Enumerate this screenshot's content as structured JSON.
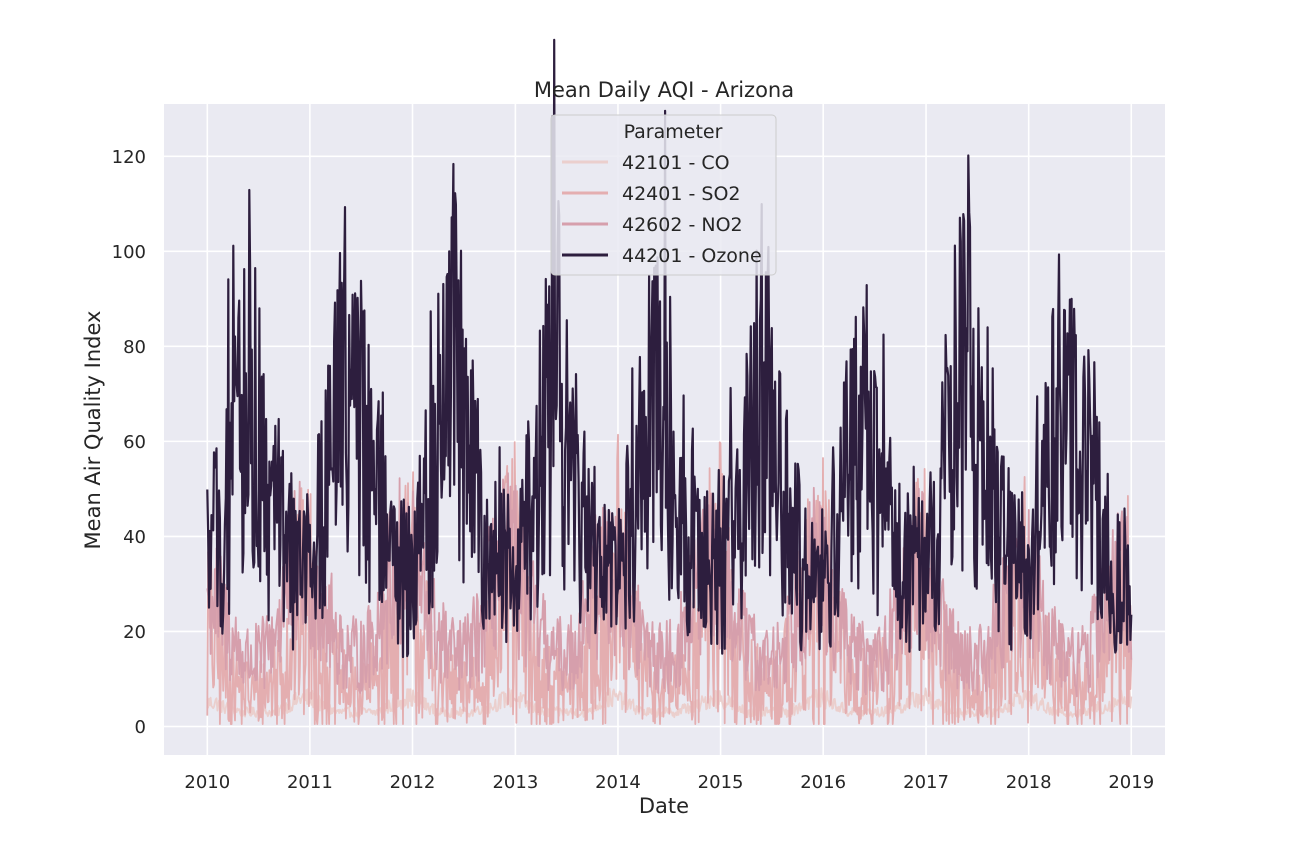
{
  "chart_data": {
    "type": "line",
    "title": "Mean Daily AQI - Arizona",
    "xlabel": "Date",
    "ylabel": "Mean Air Quality Index",
    "xlim": [
      "2009-07-31",
      "2019-05-01"
    ],
    "ylim": [
      -6,
      131
    ],
    "x_ticks": [
      "2010",
      "2011",
      "2012",
      "2013",
      "2014",
      "2015",
      "2016",
      "2017",
      "2018",
      "2019"
    ],
    "y_ticks": [
      0,
      20,
      40,
      60,
      80,
      100,
      120
    ],
    "grid": true,
    "legend": {
      "title": "Parameter",
      "placement": "top-center"
    },
    "x_start": "2010-01-01",
    "x_step": "monthly (series values are monthly representative daily means; daily noise not reproducible)",
    "series": [
      {
        "name": "42101 - CO",
        "color": "#ebcfcd",
        "values": [
          5,
          5,
          4,
          4,
          3,
          3,
          3,
          3,
          3,
          4,
          5,
          6,
          6,
          5,
          4,
          3,
          3,
          3,
          3,
          3,
          3,
          4,
          5,
          6,
          6,
          5,
          4,
          3,
          3,
          3,
          3,
          3,
          4,
          4,
          5,
          6,
          6,
          5,
          4,
          3,
          3,
          3,
          3,
          3,
          3,
          4,
          5,
          6,
          6,
          5,
          4,
          3,
          3,
          3,
          3,
          3,
          4,
          4,
          5,
          6,
          6,
          5,
          4,
          3,
          3,
          3,
          3,
          3,
          3,
          4,
          5,
          6,
          6,
          5,
          4,
          3,
          3,
          3,
          3,
          3,
          4,
          4,
          5,
          6,
          6,
          5,
          4,
          3,
          3,
          3,
          3,
          3,
          3,
          4,
          5,
          6,
          6,
          5,
          4,
          3,
          3,
          3,
          3,
          3,
          4,
          4,
          5,
          6,
          6
        ]
      },
      {
        "name": "42401 - SO2",
        "color": "#e4aeb0",
        "values": [
          22,
          16,
          12,
          9,
          8,
          7,
          7,
          8,
          10,
          14,
          20,
          24,
          26,
          18,
          13,
          10,
          8,
          7,
          7,
          8,
          11,
          15,
          21,
          25,
          28,
          19,
          14,
          10,
          8,
          7,
          8,
          9,
          12,
          16,
          22,
          27,
          29,
          20,
          14,
          10,
          8,
          8,
          8,
          9,
          12,
          17,
          23,
          27,
          30,
          21,
          15,
          11,
          9,
          8,
          8,
          10,
          13,
          18,
          24,
          28,
          30,
          21,
          15,
          11,
          9,
          8,
          8,
          10,
          13,
          17,
          23,
          27,
          28,
          20,
          14,
          10,
          8,
          8,
          8,
          10,
          12,
          17,
          22,
          26,
          27,
          19,
          14,
          10,
          8,
          7,
          8,
          9,
          12,
          16,
          21,
          25,
          26,
          18,
          13,
          10,
          8,
          7,
          7,
          9,
          12,
          16,
          20,
          24,
          26
        ]
      },
      {
        "name": "42602 - NO2",
        "color": "#d69fac",
        "values": [
          30,
          26,
          22,
          18,
          15,
          14,
          14,
          16,
          21,
          27,
          32,
          34,
          33,
          28,
          23,
          19,
          16,
          15,
          15,
          17,
          22,
          28,
          33,
          35,
          33,
          28,
          23,
          19,
          16,
          15,
          15,
          17,
          22,
          28,
          33,
          35,
          33,
          28,
          23,
          19,
          16,
          15,
          15,
          17,
          22,
          28,
          32,
          34,
          32,
          27,
          22,
          18,
          16,
          14,
          15,
          17,
          21,
          27,
          31,
          33,
          31,
          26,
          21,
          18,
          15,
          14,
          14,
          16,
          21,
          26,
          31,
          33,
          31,
          26,
          21,
          18,
          15,
          14,
          14,
          16,
          21,
          26,
          31,
          33,
          31,
          26,
          21,
          18,
          15,
          14,
          14,
          16,
          20,
          26,
          30,
          32,
          30,
          25,
          21,
          17,
          15,
          14,
          14,
          16,
          20,
          25,
          29,
          31,
          30
        ]
      },
      {
        "name": "44201 - Ozone",
        "color": "#2d1e3e",
        "values": [
          36,
          38,
          44,
          52,
          62,
          72,
          56,
          50,
          44,
          38,
          34,
          33,
          35,
          40,
          50,
          62,
          74,
          82,
          60,
          54,
          45,
          39,
          34,
          32,
          34,
          40,
          48,
          60,
          72,
          80,
          58,
          52,
          44,
          38,
          34,
          32,
          33,
          38,
          46,
          58,
          68,
          78,
          56,
          50,
          43,
          37,
          33,
          32,
          33,
          38,
          46,
          56,
          66,
          76,
          56,
          50,
          43,
          37,
          33,
          32,
          33,
          38,
          45,
          55,
          64,
          74,
          55,
          49,
          42,
          36,
          32,
          31,
          32,
          37,
          44,
          52,
          60,
          64,
          50,
          46,
          40,
          35,
          32,
          31,
          33,
          39,
          48,
          58,
          68,
          80,
          58,
          51,
          44,
          38,
          34,
          32,
          33,
          39,
          48,
          60,
          70,
          80,
          58,
          52,
          44,
          38,
          34,
          32,
          33
        ]
      }
    ]
  }
}
